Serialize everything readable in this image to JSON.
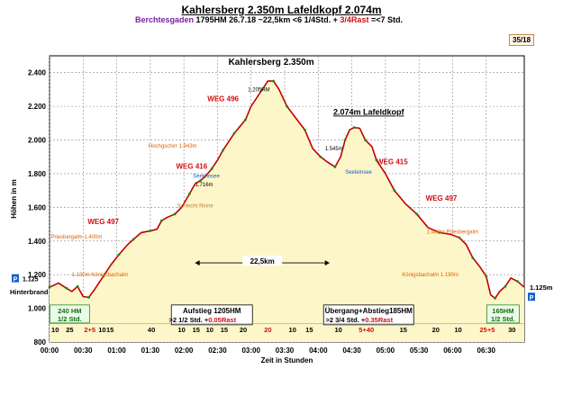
{
  "header": {
    "title": "Kahlersberg  2.350m  Lafeldkopf  2.074m",
    "origin": "Berchtesgaden",
    "stats": "1795HM   26.7.18   ~22,5km   <6 1/4Std. +",
    "rest": "3/4Rast",
    "total": "=<7 Std.",
    "badge": "35/18"
  },
  "chart_data": {
    "type": "area",
    "xlabel": "Zeit in Stunden",
    "ylabel": "Höhen in m",
    "ylim": [
      800,
      2500
    ],
    "xlim_min": [
      0,
      765
    ],
    "y_ticks": [
      "800",
      "1.000",
      "1.200",
      "1.400",
      "1.600",
      "1.800",
      "2.000",
      "2.200",
      "2.400"
    ],
    "y_tick_values": [
      800,
      1000,
      1200,
      1400,
      1600,
      1800,
      2000,
      2200,
      2400
    ],
    "x_ticks": [
      "00:00",
      "00:30",
      "01:00",
      "01:30",
      "02:00",
      "02:30",
      "03:00",
      "03:30",
      "04:00",
      "04:30",
      "05:00",
      "05:30",
      "06:00",
      "06:30"
    ],
    "x_tick_minutes": [
      0,
      30,
      60,
      90,
      120,
      150,
      180,
      210,
      240,
      270,
      300,
      330,
      360,
      390
    ],
    "profile": [
      [
        0,
        1125
      ],
      [
        8,
        1150
      ],
      [
        15,
        1120
      ],
      [
        20,
        1100
      ],
      [
        25,
        1130
      ],
      [
        30,
        1070
      ],
      [
        35,
        1065
      ],
      [
        40,
        1110
      ],
      [
        48,
        1190
      ],
      [
        55,
        1260
      ],
      [
        62,
        1320
      ],
      [
        70,
        1380
      ],
      [
        75,
        1410
      ],
      [
        82,
        1450
      ],
      [
        90,
        1460
      ],
      [
        96,
        1470
      ],
      [
        100,
        1520
      ],
      [
        105,
        1540
      ],
      [
        112,
        1560
      ],
      [
        118,
        1600
      ],
      [
        125,
        1680
      ],
      [
        130,
        1740
      ],
      [
        135,
        1760
      ],
      [
        140,
        1790
      ],
      [
        145,
        1830
      ],
      [
        150,
        1880
      ],
      [
        155,
        1940
      ],
      [
        160,
        1990
      ],
      [
        165,
        2040
      ],
      [
        170,
        2080
      ],
      [
        175,
        2120
      ],
      [
        180,
        2200
      ],
      [
        190,
        2300
      ],
      [
        195,
        2350
      ],
      [
        200,
        2350
      ],
      [
        205,
        2300
      ],
      [
        212,
        2200
      ],
      [
        220,
        2130
      ],
      [
        228,
        2060
      ],
      [
        235,
        1950
      ],
      [
        242,
        1900
      ],
      [
        248,
        1870
      ],
      [
        255,
        1840
      ],
      [
        260,
        1900
      ],
      [
        264,
        2000
      ],
      [
        268,
        2060
      ],
      [
        272,
        2074
      ],
      [
        277,
        2070
      ],
      [
        282,
        2000
      ],
      [
        288,
        1960
      ],
      [
        292,
        1880
      ],
      [
        300,
        1800
      ],
      [
        308,
        1700
      ],
      [
        318,
        1620
      ],
      [
        328,
        1560
      ],
      [
        338,
        1480
      ],
      [
        348,
        1450
      ],
      [
        358,
        1440
      ],
      [
        366,
        1420
      ],
      [
        372,
        1380
      ],
      [
        378,
        1300
      ],
      [
        384,
        1250
      ],
      [
        390,
        1190
      ],
      [
        394,
        1080
      ],
      [
        398,
        1060
      ],
      [
        402,
        1100
      ],
      [
        407,
        1130
      ],
      [
        412,
        1180
      ],
      [
        418,
        1160
      ],
      [
        424,
        1125
      ]
    ],
    "peak_title_1": "Kahlersberg  2.350m",
    "peak_title_2": "2.074m Lafeldkopf",
    "distance_label": "22,5km",
    "ascent_box": "Aufstieg 1205HM",
    "ascent_time": ">2  1/2 Std. + ",
    "ascent_rest": "0.05Rast",
    "transfer_box": "Übergang+Abstieg185HM",
    "transfer_time": ">2 3/4 Std. + ",
    "transfer_rest": "0.35Rast",
    "left_box_hm": "240 HM",
    "left_box_time": "1/2 Std.",
    "right_box_hm": "165HM",
    "right_box_time": "1/2 Std.",
    "left_start_value": "1.125",
    "start_label": "Hinterbrand",
    "end_value": "1.125m",
    "p_marker": "P",
    "segment_times": [
      "10",
      "25",
      "2+5",
      "10",
      "15",
      "40",
      "10",
      "15",
      "10",
      "15",
      "20",
      "20",
      "10",
      "15",
      "10",
      "5+40",
      "15",
      "20",
      "10",
      "25+5",
      "30"
    ],
    "segment_minutes": [
      5,
      18,
      36,
      47,
      54,
      91,
      118,
      131,
      143,
      156,
      173,
      195,
      217,
      232,
      258,
      283,
      316,
      345,
      365,
      391,
      413
    ],
    "route_labels": [
      {
        "text": "WEG 496",
        "t": 155,
        "h": 2230,
        "color": "#d01010"
      },
      {
        "text": "WEG 416",
        "t": 127,
        "h": 1830,
        "color": "#d01010"
      },
      {
        "text": "WEG 497",
        "t": 48,
        "h": 1500,
        "color": "#d01010"
      },
      {
        "text": "WEG 415",
        "t": 306,
        "h": 1855,
        "color": "#d01010"
      },
      {
        "text": "WEG 497",
        "t": 350,
        "h": 1640,
        "color": "#d01010"
      },
      {
        "text": "Hochgschirr 1.943m",
        "t": 110,
        "h": 1955,
        "color": "#e06000"
      },
      {
        "text": "Priesbergalm 1.400m",
        "t": 24,
        "h": 1415,
        "color": "#e06000"
      },
      {
        "text": "1.460m Priesbergalm",
        "t": 360,
        "h": 1445,
        "color": "#e06000"
      },
      {
        "text": "1.130m Königsbachalm",
        "t": 45,
        "h": 1190,
        "color": "#e06000"
      },
      {
        "text": "Königsbachalm 1.190m",
        "t": 340,
        "h": 1190,
        "color": "#e06000"
      },
      {
        "text": "Schlecht Rinne",
        "t": 130,
        "h": 1600,
        "color": "#c08040"
      },
      {
        "text": "Seeleinsee",
        "t": 140,
        "h": 1775,
        "color": "#1060c0"
      },
      {
        "text": "Seeleinsee",
        "t": 276,
        "h": 1800,
        "color": "#1060c0"
      },
      {
        "text": "1.205HM",
        "t": 187,
        "h": 2290,
        "color": "#000000"
      },
      {
        "text": "1.545m",
        "t": 254,
        "h": 1940,
        "color": "#000000"
      },
      {
        "text": "1.716m",
        "t": 138,
        "h": 1725,
        "color": "#000000"
      }
    ],
    "grid": true
  }
}
